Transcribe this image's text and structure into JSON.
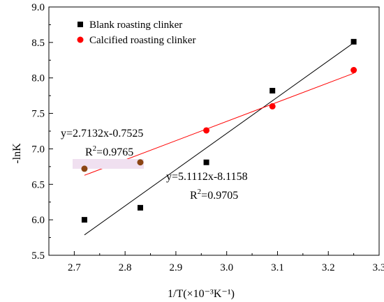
{
  "chart_data": {
    "type": "scatter",
    "xlabel": "1/T(×10⁻³K⁻¹)",
    "ylabel": "-lnK",
    "xlim": [
      2.65,
      3.3
    ],
    "ylim": [
      5.5,
      9.0
    ],
    "x_ticks": [
      "2.7",
      "2.8",
      "2.9",
      "3.0",
      "3.1",
      "3.2",
      "3.3"
    ],
    "y_ticks": [
      "5.5",
      "6.0",
      "6.5",
      "7.0",
      "7.5",
      "8.0",
      "8.5",
      "9.0"
    ],
    "grid": false,
    "legend_position": "top-right",
    "series": [
      {
        "name": "Blank roasting clinker",
        "marker": "square",
        "color": "#000000",
        "points": [
          {
            "x": 2.72,
            "y": 6.0
          },
          {
            "x": 2.83,
            "y": 6.17
          },
          {
            "x": 2.96,
            "y": 6.81
          },
          {
            "x": 3.09,
            "y": 7.82
          },
          {
            "x": 3.25,
            "y": 8.51
          }
        ],
        "fit": {
          "color": "#000000",
          "x_range": [
            2.72,
            3.25
          ],
          "slope": 5.1112,
          "intercept": -8.1158
        }
      },
      {
        "name": "Calcified roasting clinker",
        "marker": "circle",
        "color": "#ff0000",
        "points": [
          {
            "x": 2.72,
            "y": 6.72,
            "color": "#8b4513"
          },
          {
            "x": 2.83,
            "y": 6.81,
            "color": "#8b4513"
          },
          {
            "x": 2.96,
            "y": 7.26
          },
          {
            "x": 3.09,
            "y": 7.6
          },
          {
            "x": 3.25,
            "y": 8.11
          }
        ],
        "fit": {
          "color": "#ff0000",
          "x_range": [
            2.72,
            3.25
          ],
          "slope": 2.7132,
          "intercept": -0.7525
        }
      }
    ],
    "annotations": [
      {
        "id": "eq-red",
        "text": "y=2.7132x-0.7525"
      },
      {
        "id": "r2-red",
        "base": "R",
        "sup": "2",
        "value": "=0.9765"
      },
      {
        "id": "eq-black",
        "text": "y=5.1112x-8.1158"
      },
      {
        "id": "r2-black",
        "base": "R",
        "sup": "2",
        "value": "=0.9705"
      }
    ]
  }
}
